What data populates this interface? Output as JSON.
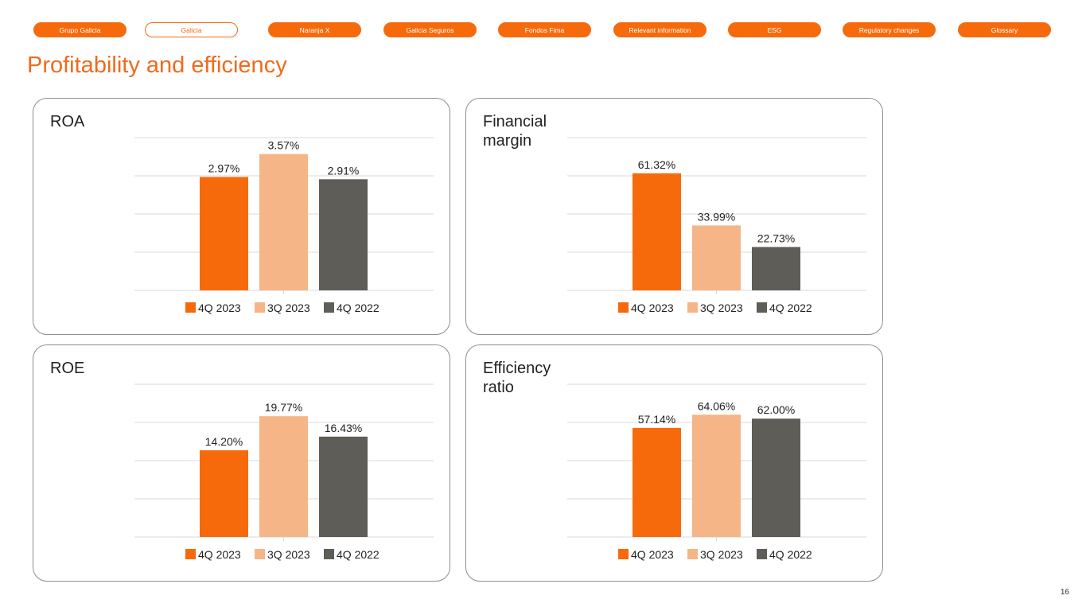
{
  "nav": {
    "items": [
      "Grupo Galicia",
      "Galicia",
      "Naranja X",
      "Galicia Seguros",
      "Fondos Fima",
      "Relevant information",
      "ESG",
      "Regulatory changes",
      "Glossary"
    ],
    "active": "Galicia"
  },
  "page": {
    "title": "Profitability and efficiency",
    "number": "16"
  },
  "colors": {
    "accent": "#f76a0c",
    "series": [
      "#f76a0c",
      "#f5b587",
      "#5f5d57"
    ],
    "grid": "#d9d9d9"
  },
  "chart_data": [
    {
      "type": "bar",
      "title": "ROA",
      "categories": [
        "4Q 2023",
        "3Q 2023",
        "4Q 2022"
      ],
      "values": [
        2.97,
        3.57,
        2.91
      ],
      "labels": [
        "2.97%",
        "3.57%",
        "2.91%"
      ],
      "ylim": [
        0,
        4
      ]
    },
    {
      "type": "bar",
      "title": "Financial margin",
      "categories": [
        "4Q 2023",
        "3Q 2023",
        "4Q 2022"
      ],
      "values": [
        61.32,
        33.99,
        22.73
      ],
      "labels": [
        "61.32%",
        "33.99%",
        "22.73%"
      ],
      "ylim": [
        0,
        80
      ]
    },
    {
      "type": "bar",
      "title": "ROE",
      "categories": [
        "4Q 2023",
        "3Q 2023",
        "4Q 2022"
      ],
      "values": [
        14.2,
        19.77,
        16.43
      ],
      "labels": [
        "14.20%",
        "19.77%",
        "16.43%"
      ],
      "ylim": [
        0,
        25
      ]
    },
    {
      "type": "bar",
      "title": "Efficiency ratio",
      "categories": [
        "4Q 2023",
        "3Q 2023",
        "4Q 2022"
      ],
      "values": [
        57.14,
        64.06,
        62.0
      ],
      "labels": [
        "57.14%",
        "64.06%",
        "62.00%"
      ],
      "ylim": [
        0,
        80
      ]
    }
  ]
}
